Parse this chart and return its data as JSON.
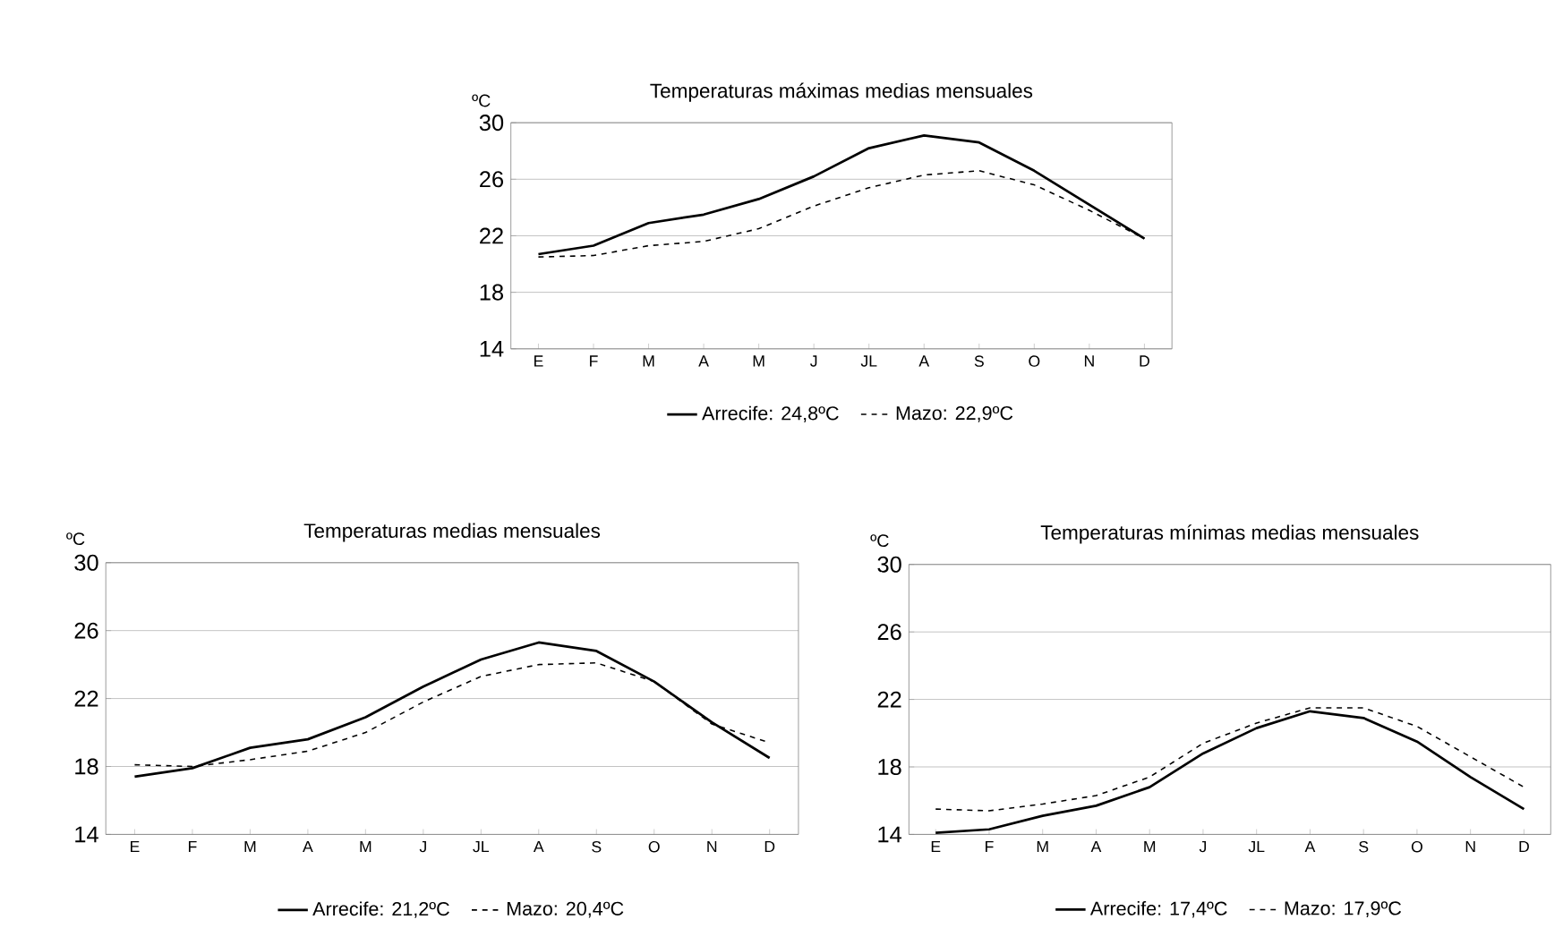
{
  "chart_data": [
    {
      "type": "line",
      "title": "Temperaturas máximas medias mensuales",
      "ylabel": "ºC",
      "categories": [
        "E",
        "F",
        "M",
        "A",
        "M",
        "J",
        "JL",
        "A",
        "S",
        "O",
        "N",
        "D"
      ],
      "ylim": [
        14,
        30
      ],
      "yticks": [
        14,
        18,
        22,
        26,
        30
      ],
      "grid": "y",
      "legend": "bottom",
      "series": [
        {
          "name": "Arrecife: 24,8ºC",
          "color": "#000000",
          "line_style": "solid",
          "values": [
            20.7,
            21.3,
            22.9,
            23.5,
            24.6,
            26.2,
            28.2,
            29.1,
            28.6,
            26.6,
            24.2,
            21.8
          ]
        },
        {
          "name": "Mazo: 22,9ºC",
          "color": "#000000",
          "line_style": "dashed",
          "values": [
            20.5,
            20.6,
            21.3,
            21.6,
            22.5,
            24.1,
            25.4,
            26.3,
            26.6,
            25.6,
            23.8,
            21.8
          ]
        }
      ]
    },
    {
      "type": "line",
      "title": "Temperaturas medias mensuales",
      "ylabel": "ºC",
      "categories": [
        "E",
        "F",
        "M",
        "A",
        "M",
        "J",
        "JL",
        "A",
        "S",
        "O",
        "N",
        "D"
      ],
      "ylim": [
        14,
        30
      ],
      "yticks": [
        14,
        18,
        22,
        26,
        30
      ],
      "grid": "y",
      "legend": "bottom",
      "series": [
        {
          "name": "Arrecife: 21,2ºC",
          "color": "#000000",
          "line_style": "solid",
          "values": [
            17.4,
            17.9,
            19.1,
            19.6,
            20.9,
            22.7,
            24.3,
            25.3,
            24.8,
            23.0,
            20.6,
            18.5
          ]
        },
        {
          "name": "Mazo: 20,4ºC",
          "color": "#000000",
          "line_style": "dashed",
          "values": [
            18.1,
            18.0,
            18.4,
            18.9,
            20.0,
            21.8,
            23.3,
            24.0,
            24.1,
            23.0,
            20.5,
            19.4
          ]
        }
      ]
    },
    {
      "type": "line",
      "title": "Temperaturas mínimas medias mensuales",
      "ylabel": "ºC",
      "categories": [
        "E",
        "F",
        "M",
        "A",
        "M",
        "J",
        "JL",
        "A",
        "S",
        "O",
        "N",
        "D"
      ],
      "ylim": [
        14,
        30
      ],
      "yticks": [
        14,
        18,
        22,
        26,
        30
      ],
      "grid": "y",
      "legend": "bottom",
      "series": [
        {
          "name": "Arrecife: 17,4ºC",
          "color": "#000000",
          "line_style": "solid",
          "values": [
            14.1,
            14.3,
            15.1,
            15.7,
            16.8,
            18.8,
            20.3,
            21.3,
            20.9,
            19.5,
            17.4,
            15.5
          ]
        },
        {
          "name": "Mazo: 17,9ºC",
          "color": "#000000",
          "line_style": "dashed",
          "values": [
            15.5,
            15.4,
            15.8,
            16.3,
            17.4,
            19.4,
            20.6,
            21.5,
            21.5,
            20.4,
            18.6,
            16.8
          ]
        }
      ]
    }
  ]
}
